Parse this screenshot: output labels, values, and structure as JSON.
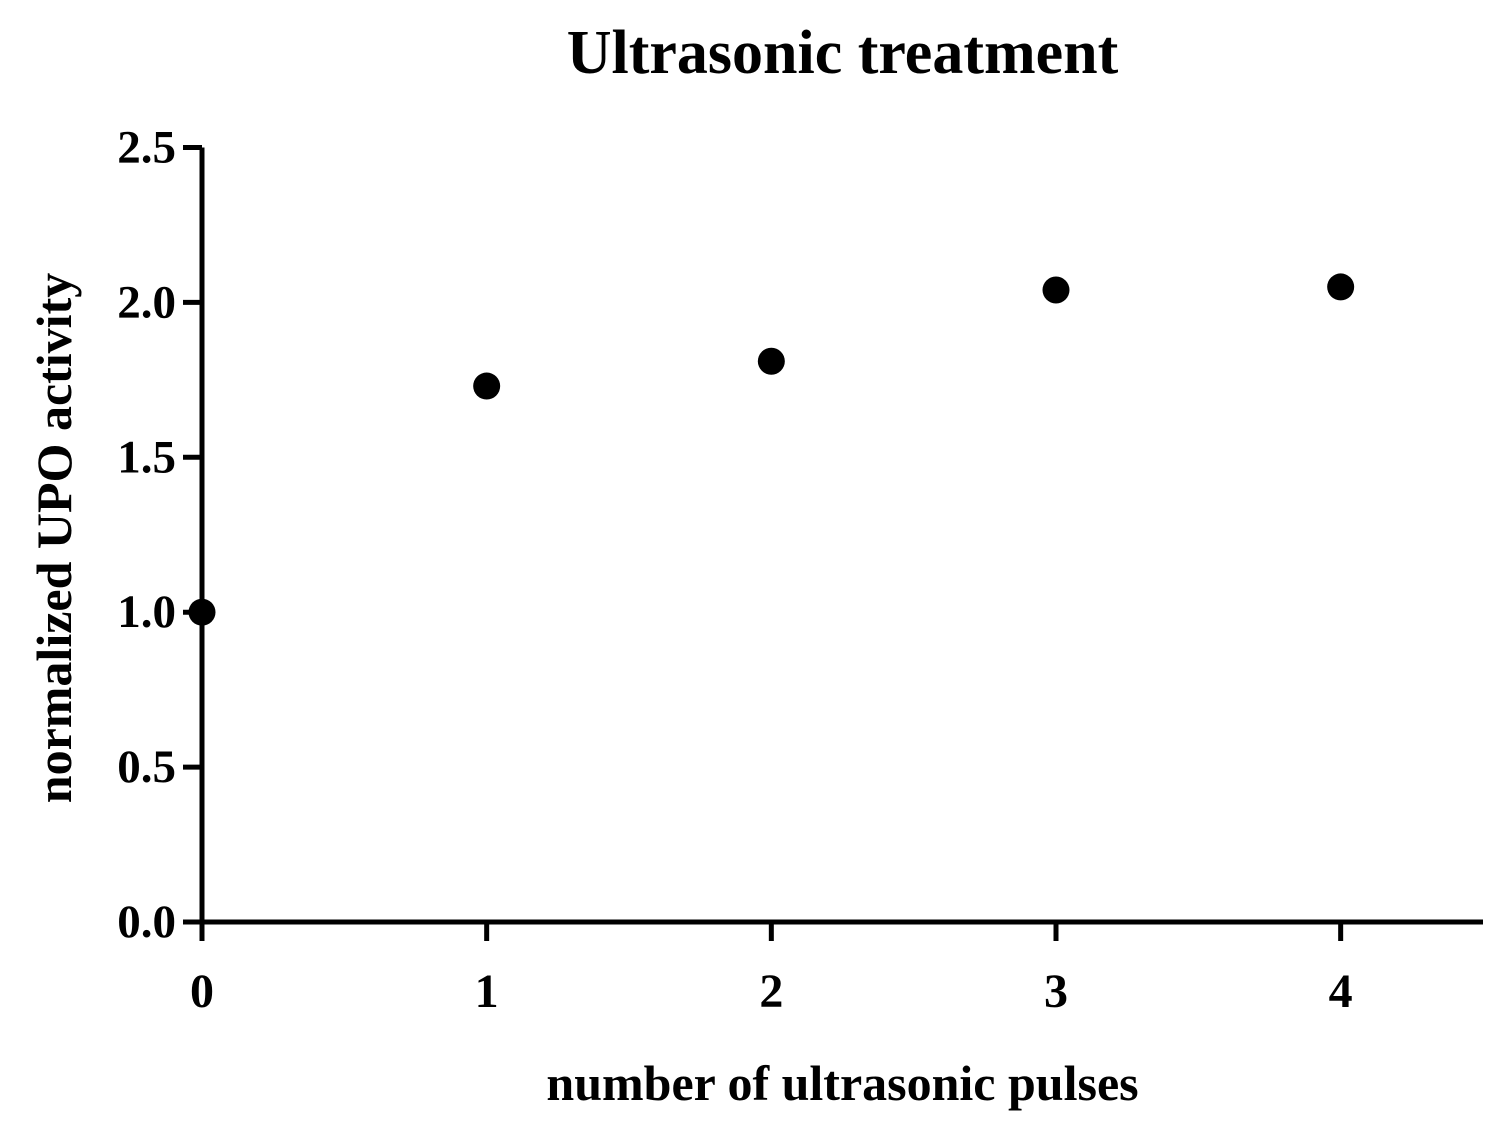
{
  "chart_data": {
    "type": "scatter",
    "title": "Ultrasonic treatment",
    "xlabel": "number of ultrasonic pulses",
    "ylabel": "normalized UPO activity",
    "x": [
      0,
      1,
      2,
      3,
      4
    ],
    "y": [
      1.0,
      1.73,
      1.81,
      2.04,
      2.05
    ],
    "xticks": [
      0,
      1,
      2,
      3,
      4
    ],
    "xtick_labels": [
      "0",
      "1",
      "2",
      "3",
      "4"
    ],
    "yticks": [
      0.0,
      0.5,
      1.0,
      1.5,
      2.0,
      2.5
    ],
    "ytick_labels": [
      "0.0",
      "0.5",
      "1.0",
      "1.5",
      "2.0",
      "2.5"
    ],
    "xlim": [
      0,
      4.5
    ],
    "ylim": [
      0,
      2.5
    ],
    "grid": false,
    "legend": null,
    "marker_shape": "circle",
    "marker_color": "#000000",
    "marker_diameter_px": 27,
    "axis_color": "#000000",
    "background_color": "#ffffff"
  }
}
